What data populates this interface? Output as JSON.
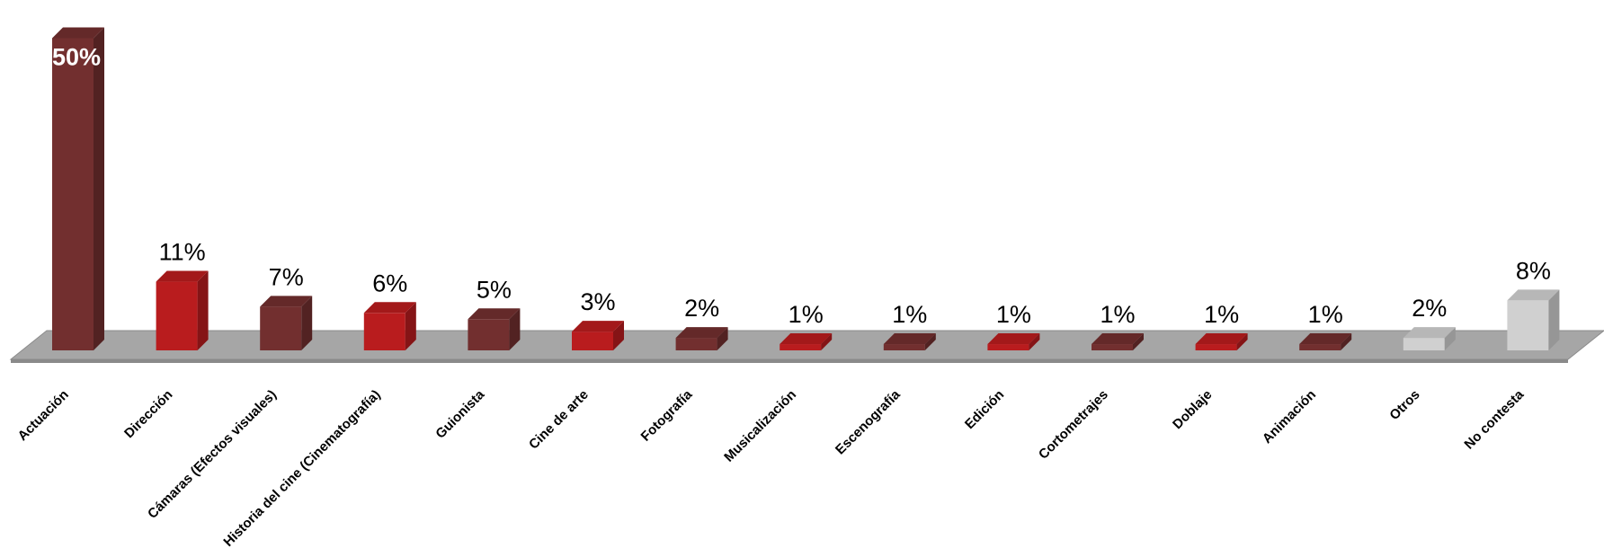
{
  "chart_data": {
    "type": "bar",
    "title": "",
    "xlabel": "",
    "ylabel": "",
    "ylim": [
      0,
      50
    ],
    "grid": false,
    "legend": "none",
    "categories": [
      "Actuación",
      "Dirección",
      "Cámaras (Efectos visuales)",
      "Historia del cine (Cinematografía)",
      "Guionista",
      "Cine de arte",
      "Fotografía",
      "Musicalización",
      "Escenografía",
      "Edición",
      "Cortometrajes",
      "Doblaje",
      "Animación",
      "Otros",
      "No contesta"
    ],
    "values": [
      50,
      11,
      7,
      6,
      5,
      3,
      2,
      1,
      1,
      1,
      1,
      1,
      1,
      2,
      8
    ],
    "labels": [
      "50%",
      "11%",
      "7%",
      "6%",
      "5%",
      "3%",
      "2%",
      "1%",
      "1%",
      "1%",
      "1%",
      "1%",
      "1%",
      "2%",
      "8%"
    ],
    "colors": {
      "dark": "#722f2f",
      "red": "#b91c1e",
      "gray": "#d0d0d0",
      "floor": "#a6a6a6"
    },
    "bar_colors": [
      "dark",
      "red",
      "dark",
      "red",
      "dark",
      "red",
      "dark",
      "red",
      "dark",
      "red",
      "dark",
      "red",
      "dark",
      "gray",
      "gray"
    ]
  }
}
